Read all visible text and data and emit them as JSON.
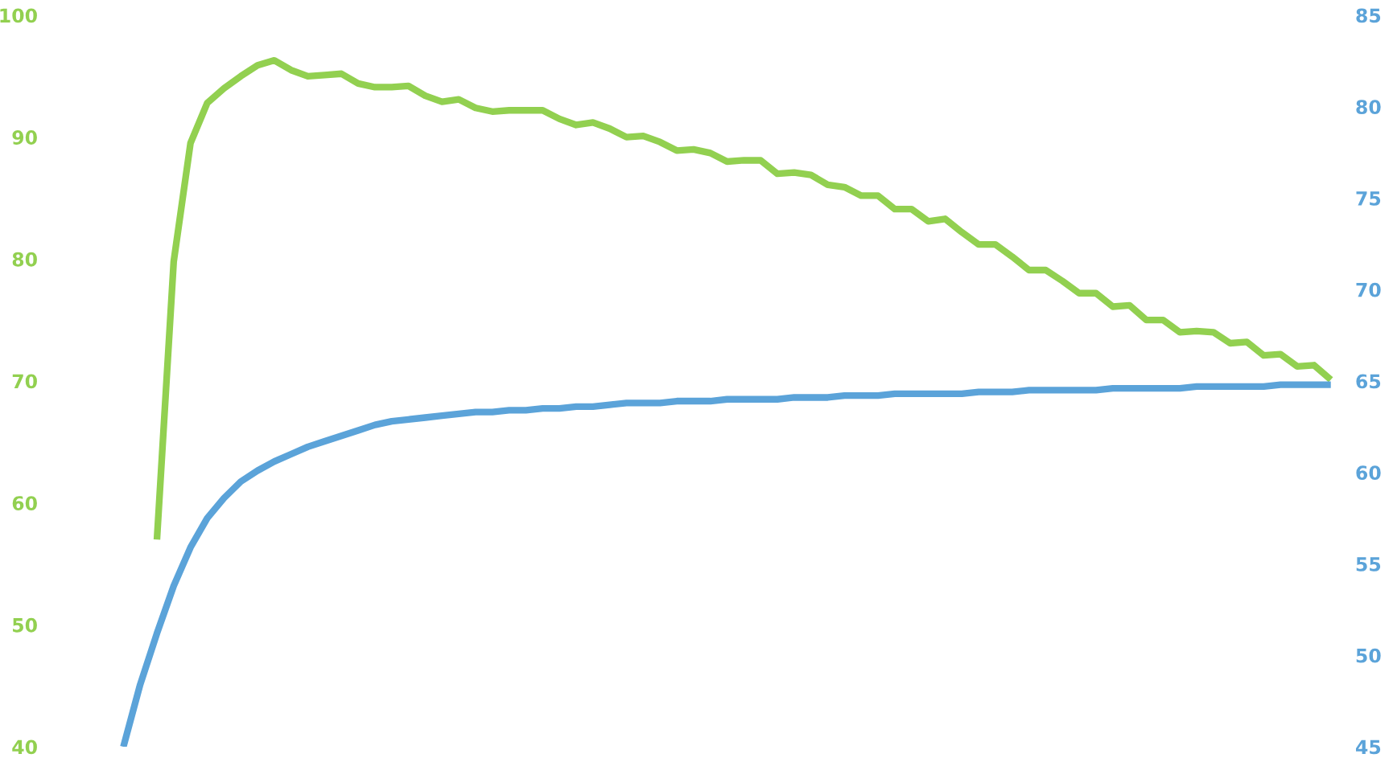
{
  "chart_data": {
    "type": "line",
    "categories": [
      null,
      null,
      null,
      null,
      null,
      null,
      null,
      null,
      null,
      null,
      null,
      null,
      null,
      null,
      null,
      null,
      null,
      null,
      null,
      null,
      null,
      null,
      null,
      null,
      null,
      null,
      null,
      null,
      null,
      null,
      null,
      null,
      null,
      null,
      null,
      null,
      null,
      null,
      null,
      null,
      null,
      null,
      null,
      null,
      null,
      null,
      null,
      null,
      null,
      null,
      null,
      null,
      null,
      null,
      null,
      null,
      null,
      null,
      null,
      null,
      null,
      null,
      null,
      null,
      null,
      null,
      null,
      null,
      null,
      null,
      null,
      null,
      null
    ],
    "series": [
      {
        "color": "#92d050",
        "values": [
          null,
          null,
          57,
          79.8,
          89.5,
          92.8,
          94.0,
          95.0,
          95.9,
          96.3,
          95.5,
          95.0,
          95.1,
          95.2,
          94.4,
          94.1,
          94.1,
          94.2,
          93.4,
          92.9,
          93.1,
          92.4,
          92.1,
          92.2,
          92.2,
          92.2,
          91.5,
          91.0,
          91.2,
          90.7,
          90.0,
          90.1,
          89.6,
          88.9,
          89.0,
          88.7,
          88.0,
          88.1,
          88.1,
          87.0,
          87.1,
          86.9,
          86.1,
          85.9,
          85.2,
          85.2,
          84.1,
          84.1,
          83.1,
          83.3,
          82.2,
          81.2,
          81.2,
          80.2,
          79.1,
          79.1,
          78.2,
          77.2,
          77.2,
          76.1,
          76.2,
          75.0,
          75.0,
          74.0,
          74.1,
          74.0,
          73.1,
          73.2,
          72.1,
          72.2,
          71.2,
          71.3,
          70.1
        ]
      },
      {
        "color": "#5ba3d9",
        "axis": "y2",
        "values": [
          45.0,
          48.4,
          51.2,
          53.8,
          55.9,
          57.5,
          58.6,
          59.5,
          60.1,
          60.6,
          61.0,
          61.4,
          61.7,
          62.0,
          62.3,
          62.6,
          62.8,
          62.9,
          63.0,
          63.1,
          63.2,
          63.3,
          63.3,
          63.4,
          63.4,
          63.5,
          63.5,
          63.6,
          63.6,
          63.7,
          63.8,
          63.8,
          63.8,
          63.9,
          63.9,
          63.9,
          64.0,
          64.0,
          64.0,
          64.0,
          64.1,
          64.1,
          64.1,
          64.2,
          64.2,
          64.2,
          64.3,
          64.3,
          64.3,
          64.3,
          64.3,
          64.4,
          64.4,
          64.4,
          64.5,
          64.5,
          64.5,
          64.5,
          64.5,
          64.6,
          64.6,
          64.6,
          64.6,
          64.6,
          64.7,
          64.7,
          64.7,
          64.7,
          64.7,
          64.8,
          64.8,
          64.8,
          64.8
        ]
      }
    ],
    "ylim": [
      40,
      100
    ],
    "yticks": [
      40,
      50,
      60,
      70,
      80,
      90,
      100
    ],
    "y2lim": [
      45,
      85
    ],
    "y2ticks": [
      45,
      50,
      55,
      60,
      65,
      70,
      75,
      80,
      85
    ],
    "grid": false,
    "marker": "none",
    "line_style": "solid"
  }
}
